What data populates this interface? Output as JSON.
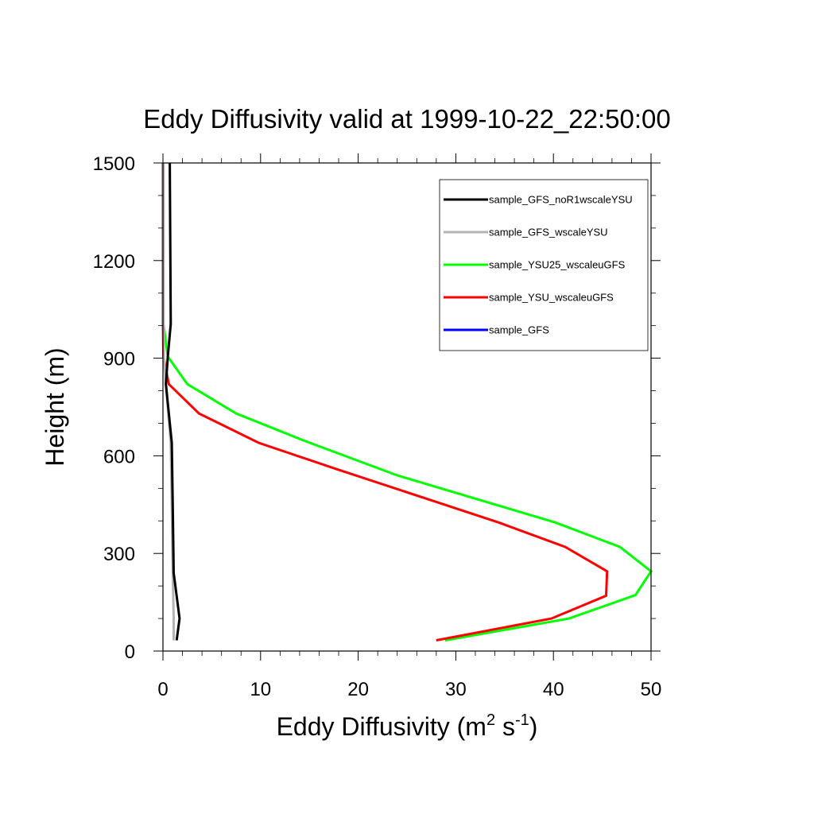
{
  "chart_data": {
    "type": "line",
    "title": "Eddy Diffusivity valid at 1999-10-22_22:50:00",
    "xlabel": {
      "prefix": "Eddy Diffusivity (m",
      "sup1": "2",
      "mid": " s",
      "sup2": "-1",
      "suffix": ")"
    },
    "ylabel": "Height (m)",
    "xlim": [
      0,
      50
    ],
    "ylim": [
      0,
      1500
    ],
    "x_ticks": [
      "0",
      "10",
      "20",
      "30",
      "40",
      "50"
    ],
    "y_ticks": [
      "0",
      "300",
      "600",
      "900",
      "1200",
      "1500"
    ],
    "x_tick_values": [
      0,
      10,
      20,
      30,
      40,
      50
    ],
    "y_tick_values": [
      0,
      300,
      600,
      900,
      1200,
      1500
    ],
    "legend_position": "top-right",
    "series": [
      {
        "name": "sample_GFS_noR1wscaleYSU",
        "color": "#000000",
        "points": [
          [
            1.4,
            33
          ],
          [
            1.7,
            100
          ],
          [
            1.1,
            240
          ],
          [
            1.0,
            450
          ],
          [
            0.9,
            640
          ],
          [
            0.3,
            820
          ],
          [
            0.5,
            905
          ],
          [
            0.8,
            1005
          ],
          [
            0.75,
            1250
          ],
          [
            0.7,
            1500
          ]
        ]
      },
      {
        "name": "sample_GFS_wscaleYSU",
        "color": "#b4b4b4",
        "points": [
          [
            1.1,
            33
          ],
          [
            1.1,
            100
          ],
          [
            1.0,
            240
          ],
          [
            0.9,
            450
          ],
          [
            0.8,
            640
          ],
          [
            0.3,
            820
          ],
          [
            0.1,
            905
          ],
          [
            0.05,
            1005
          ],
          [
            0.05,
            1500
          ]
        ]
      },
      {
        "name": "sample_YSU25_wscaleuGFS",
        "color": "#00ff00",
        "points": [
          [
            28.9,
            33
          ],
          [
            41.6,
            100
          ],
          [
            48.4,
            172
          ],
          [
            50.0,
            245
          ],
          [
            46.8,
            320
          ],
          [
            40.2,
            395
          ],
          [
            24.0,
            540
          ],
          [
            14.6,
            645
          ],
          [
            7.5,
            730
          ],
          [
            2.5,
            820
          ],
          [
            0.5,
            905
          ],
          [
            0.05,
            1005
          ],
          [
            0.05,
            1500
          ]
        ]
      },
      {
        "name": "sample_YSU_wscaleuGFS",
        "color": "#ff0000",
        "points": [
          [
            28.0,
            33
          ],
          [
            39.8,
            100
          ],
          [
            45.4,
            170
          ],
          [
            45.5,
            245
          ],
          [
            41.2,
            320
          ],
          [
            34.4,
            395
          ],
          [
            17.7,
            560
          ],
          [
            9.8,
            640
          ],
          [
            3.7,
            730
          ],
          [
            0.6,
            820
          ],
          [
            0.05,
            905
          ],
          [
            0.0,
            1005
          ],
          [
            0.0,
            1500
          ]
        ]
      },
      {
        "name": "sample_GFS",
        "color": "#0000ff",
        "points": []
      }
    ]
  }
}
